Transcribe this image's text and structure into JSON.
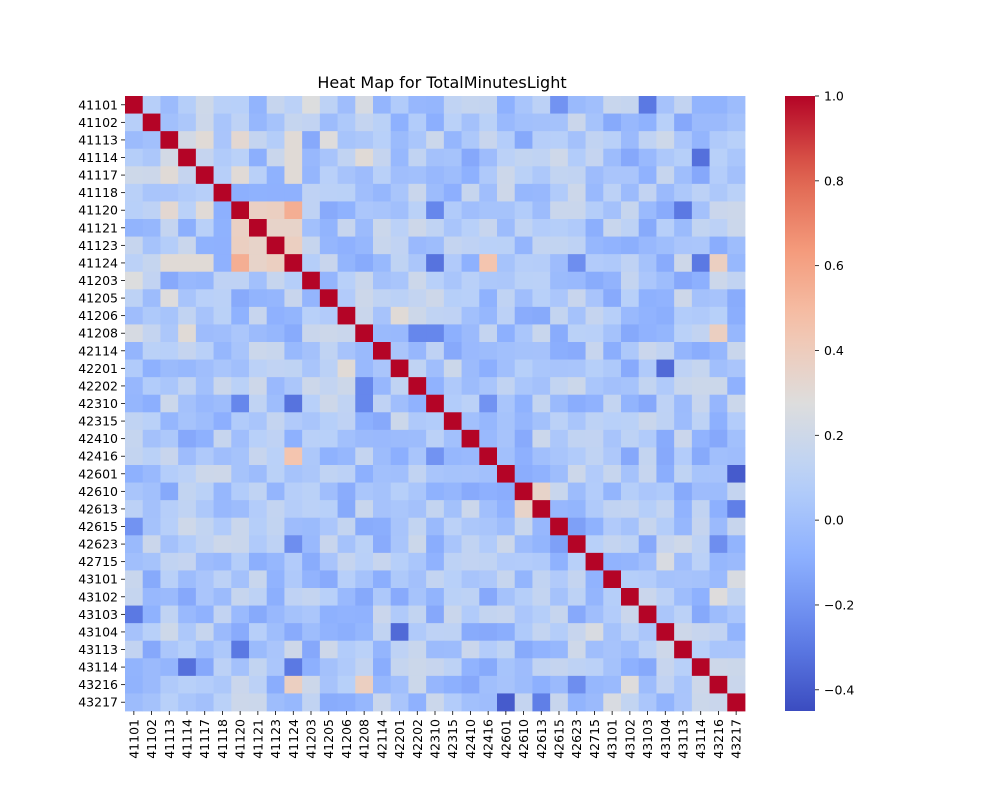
{
  "chart_data": {
    "type": "heatmap",
    "title": "Heat Map for TotalMinutesLight",
    "xlabel": "",
    "ylabel": "",
    "labels": [
      "41101",
      "41102",
      "41113",
      "41114",
      "41117",
      "41118",
      "41120",
      "41121",
      "41123",
      "41124",
      "41203",
      "41205",
      "41206",
      "41208",
      "42114",
      "42201",
      "42202",
      "42310",
      "42315",
      "42410",
      "42416",
      "42601",
      "42610",
      "42613",
      "42615",
      "42623",
      "42715",
      "43101",
      "43102",
      "43103",
      "43104",
      "43113",
      "43114",
      "43216",
      "43217"
    ],
    "colorbar": {
      "min": -0.45,
      "max": 1.0,
      "ticks": [
        "1.0",
        "0.8",
        "0.6",
        "0.4",
        "0.2",
        "0.0",
        "−0.2",
        "−0.4"
      ],
      "tick_values": [
        1.0,
        0.8,
        0.6,
        0.4,
        0.2,
        0.0,
        -0.2,
        -0.4
      ]
    },
    "colormap": "coolwarm",
    "seed_pairs": [
      [
        0,
        10,
        0.27
      ],
      [
        0,
        13,
        0.24
      ],
      [
        0,
        29,
        -0.3
      ],
      [
        2,
        3,
        0.22
      ],
      [
        2,
        4,
        0.3
      ],
      [
        2,
        9,
        0.3
      ],
      [
        2,
        11,
        0.28
      ],
      [
        2,
        6,
        0.32
      ],
      [
        3,
        13,
        0.3
      ],
      [
        3,
        32,
        -0.33
      ],
      [
        3,
        9,
        0.3
      ],
      [
        4,
        6,
        0.3
      ],
      [
        4,
        9,
        0.3
      ],
      [
        6,
        7,
        0.37
      ],
      [
        6,
        8,
        0.38
      ],
      [
        6,
        9,
        0.55
      ],
      [
        6,
        17,
        -0.25
      ],
      [
        6,
        31,
        -0.3
      ],
      [
        7,
        8,
        0.35
      ],
      [
        7,
        9,
        0.35
      ],
      [
        8,
        9,
        0.38
      ],
      [
        9,
        17,
        -0.32
      ],
      [
        9,
        20,
        0.45
      ],
      [
        9,
        25,
        -0.22
      ],
      [
        9,
        33,
        0.38
      ],
      [
        13,
        16,
        -0.25
      ],
      [
        13,
        17,
        -0.25
      ],
      [
        13,
        33,
        0.38
      ],
      [
        15,
        30,
        -0.35
      ],
      [
        15,
        12,
        0.3
      ],
      [
        17,
        20,
        -0.2
      ],
      [
        21,
        34,
        -0.4
      ],
      [
        22,
        23,
        0.35
      ],
      [
        23,
        34,
        -0.28
      ],
      [
        24,
        0,
        -0.2
      ],
      [
        29,
        0,
        -0.3
      ],
      [
        31,
        6,
        -0.3
      ],
      [
        32,
        9,
        -0.3
      ],
      [
        32,
        3,
        -0.33
      ],
      [
        27,
        34,
        0.25
      ],
      [
        25,
        33,
        -0.22
      ],
      [
        24,
        25,
        -0.15
      ],
      [
        28,
        33,
        0.28
      ],
      [
        26,
        30,
        0.25
      ]
    ]
  }
}
